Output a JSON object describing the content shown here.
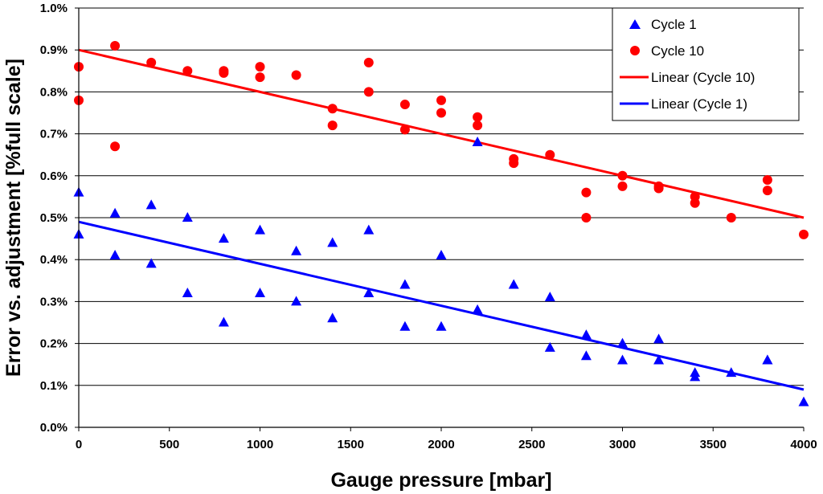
{
  "chart_data": {
    "type": "scatter",
    "title": "",
    "xlabel": "Gauge pressure [mbar]",
    "ylabel": "Error vs. adjustment [%full scale]",
    "xlim": [
      0,
      4000
    ],
    "ylim": [
      0,
      1.0
    ],
    "x_ticks": [
      0,
      500,
      1000,
      1500,
      2000,
      2500,
      3000,
      3500,
      4000
    ],
    "x_tick_labels": [
      "0",
      "500",
      "1000",
      "1500",
      "2000",
      "2500",
      "3000",
      "3500",
      "4000"
    ],
    "y_ticks": [
      0,
      0.1,
      0.2,
      0.3,
      0.4,
      0.5,
      0.6,
      0.7,
      0.8,
      0.9,
      1.0
    ],
    "y_tick_labels": [
      "0.0%",
      "0.1%",
      "0.2%",
      "0.3%",
      "0.4%",
      "0.5%",
      "0.6%",
      "0.7%",
      "0.8%",
      "0.9%",
      "1.0%"
    ],
    "grid": "horizontal",
    "legend_position": "top-right",
    "series": [
      {
        "name": "Cycle 1",
        "kind": "scatter",
        "marker": "triangle",
        "color": "#0000ff",
        "points": [
          [
            0,
            0.56
          ],
          [
            0,
            0.46
          ],
          [
            200,
            0.51
          ],
          [
            200,
            0.41
          ],
          [
            400,
            0.53
          ],
          [
            400,
            0.39
          ],
          [
            600,
            0.5
          ],
          [
            600,
            0.32
          ],
          [
            800,
            0.45
          ],
          [
            800,
            0.25
          ],
          [
            1000,
            0.47
          ],
          [
            1000,
            0.32
          ],
          [
            1200,
            0.42
          ],
          [
            1200,
            0.3
          ],
          [
            1400,
            0.44
          ],
          [
            1400,
            0.26
          ],
          [
            1600,
            0.47
          ],
          [
            1600,
            0.32
          ],
          [
            1800,
            0.34
          ],
          [
            1800,
            0.24
          ],
          [
            2000,
            0.41
          ],
          [
            2000,
            0.24
          ],
          [
            2200,
            0.68
          ],
          [
            2200,
            0.28
          ],
          [
            2400,
            0.34
          ],
          [
            2600,
            0.31
          ],
          [
            2600,
            0.19
          ],
          [
            2800,
            0.22
          ],
          [
            2800,
            0.17
          ],
          [
            3000,
            0.2
          ],
          [
            3000,
            0.16
          ],
          [
            3200,
            0.21
          ],
          [
            3200,
            0.16
          ],
          [
            3400,
            0.13
          ],
          [
            3400,
            0.12
          ],
          [
            3600,
            0.13
          ],
          [
            3800,
            0.16
          ],
          [
            3800,
            0.16
          ],
          [
            4000,
            0.06
          ]
        ]
      },
      {
        "name": "Cycle 10",
        "kind": "scatter",
        "marker": "circle",
        "color": "#ff0000",
        "points": [
          [
            0,
            0.86
          ],
          [
            0,
            0.78
          ],
          [
            200,
            0.91
          ],
          [
            200,
            0.67
          ],
          [
            400,
            0.87
          ],
          [
            600,
            0.85
          ],
          [
            800,
            0.85
          ],
          [
            800,
            0.845
          ],
          [
            1000,
            0.86
          ],
          [
            1000,
            0.835
          ],
          [
            1200,
            0.84
          ],
          [
            1400,
            0.76
          ],
          [
            1400,
            0.72
          ],
          [
            1600,
            0.87
          ],
          [
            1600,
            0.8
          ],
          [
            1800,
            0.77
          ],
          [
            1800,
            0.71
          ],
          [
            2000,
            0.78
          ],
          [
            2000,
            0.75
          ],
          [
            2200,
            0.74
          ],
          [
            2200,
            0.72
          ],
          [
            2400,
            0.64
          ],
          [
            2400,
            0.63
          ],
          [
            2600,
            0.65
          ],
          [
            2800,
            0.56
          ],
          [
            2800,
            0.5
          ],
          [
            3000,
            0.6
          ],
          [
            3000,
            0.575
          ],
          [
            3200,
            0.575
          ],
          [
            3200,
            0.57
          ],
          [
            3400,
            0.55
          ],
          [
            3400,
            0.535
          ],
          [
            3600,
            0.5
          ],
          [
            3800,
            0.59
          ],
          [
            3800,
            0.565
          ],
          [
            4000,
            0.46
          ]
        ]
      },
      {
        "name": "Linear (Cycle 10)",
        "kind": "line",
        "color": "#ff0000",
        "x": [
          0,
          4000
        ],
        "y": [
          0.9,
          0.5
        ]
      },
      {
        "name": "Linear (Cycle 1)",
        "kind": "line",
        "color": "#0000ff",
        "x": [
          0,
          4000
        ],
        "y": [
          0.49,
          0.09
        ]
      }
    ]
  }
}
